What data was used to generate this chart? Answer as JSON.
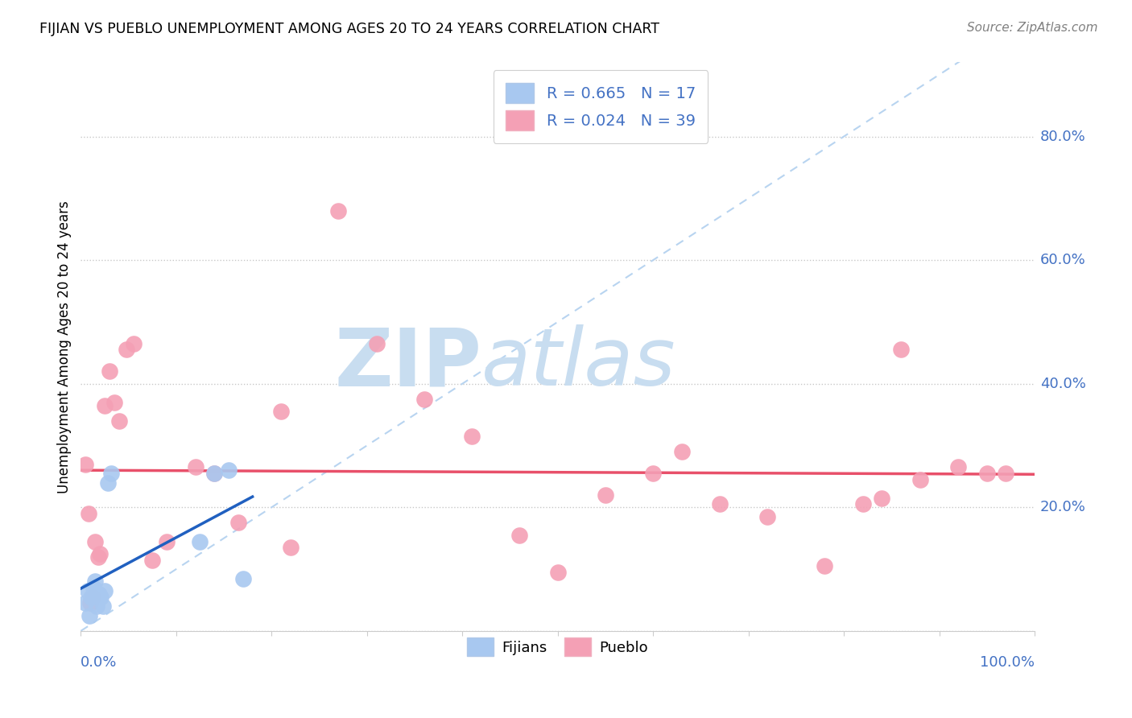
{
  "title": "FIJIAN VS PUEBLO UNEMPLOYMENT AMONG AGES 20 TO 24 YEARS CORRELATION CHART",
  "source": "Source: ZipAtlas.com",
  "ylabel": "Unemployment Among Ages 20 to 24 years",
  "legend_fijians": "Fijians",
  "legend_pueblo": "Pueblo",
  "fijian_R": "R = 0.665",
  "fijian_N": "N = 17",
  "pueblo_R": "R = 0.024",
  "pueblo_N": "N = 39",
  "xlim": [
    0.0,
    1.0
  ],
  "ylim": [
    0.0,
    0.92
  ],
  "fijian_x": [
    0.005,
    0.007,
    0.009,
    0.011,
    0.013,
    0.015,
    0.017,
    0.019,
    0.021,
    0.023,
    0.025,
    0.028,
    0.032,
    0.125,
    0.14,
    0.155,
    0.17
  ],
  "fijian_y": [
    0.045,
    0.065,
    0.025,
    0.055,
    0.07,
    0.08,
    0.04,
    0.06,
    0.055,
    0.04,
    0.065,
    0.24,
    0.255,
    0.145,
    0.255,
    0.26,
    0.085
  ],
  "pueblo_x": [
    0.005,
    0.008,
    0.01,
    0.012,
    0.015,
    0.018,
    0.02,
    0.025,
    0.03,
    0.035,
    0.04,
    0.048,
    0.055,
    0.075,
    0.09,
    0.12,
    0.14,
    0.165,
    0.21,
    0.22,
    0.27,
    0.31,
    0.36,
    0.41,
    0.46,
    0.5,
    0.55,
    0.6,
    0.63,
    0.67,
    0.72,
    0.78,
    0.82,
    0.84,
    0.86,
    0.88,
    0.92,
    0.95,
    0.97
  ],
  "pueblo_y": [
    0.27,
    0.19,
    0.045,
    0.055,
    0.145,
    0.12,
    0.125,
    0.365,
    0.42,
    0.37,
    0.34,
    0.455,
    0.465,
    0.115,
    0.145,
    0.265,
    0.255,
    0.175,
    0.355,
    0.135,
    0.68,
    0.465,
    0.375,
    0.315,
    0.155,
    0.095,
    0.22,
    0.255,
    0.29,
    0.205,
    0.185,
    0.105,
    0.205,
    0.215,
    0.455,
    0.245,
    0.265,
    0.255,
    0.255
  ],
  "fijian_color": "#a8c8f0",
  "pueblo_color": "#f4a0b5",
  "fijian_line_color": "#2060c0",
  "pueblo_line_color": "#e8506a",
  "diagonal_color": "#b8d4f0",
  "watermark_zip_color": "#c8ddf0",
  "watermark_atlas_color": "#c8ddf0",
  "background_color": "#ffffff",
  "grid_color": "#c8c8c8",
  "legend_text_color": "#4472c4",
  "right_axis_color": "#4472c4",
  "bottom_axis_color": "#4472c4"
}
